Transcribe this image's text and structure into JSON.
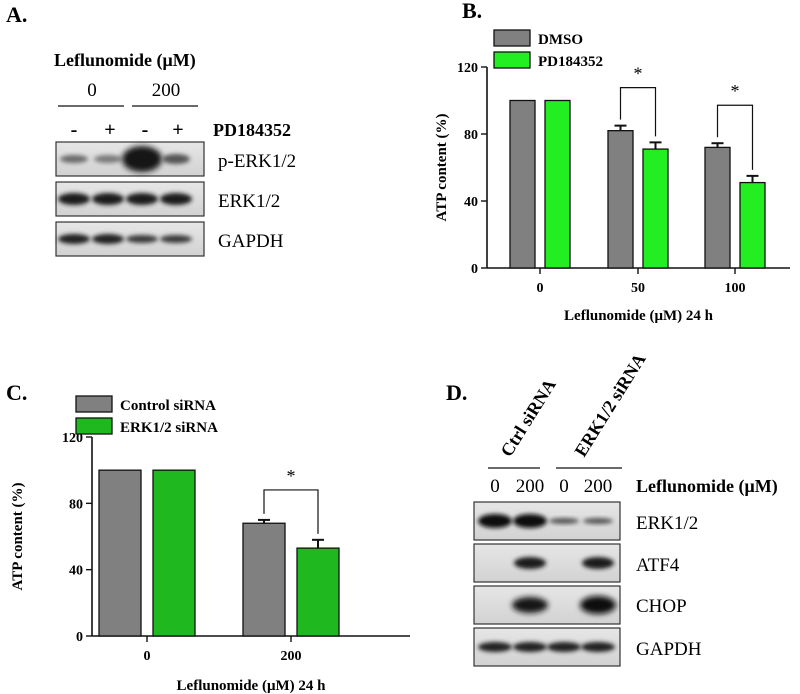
{
  "panels": {
    "a": {
      "letter": "A.",
      "treatment_label": "Leflunomide (μM)",
      "doses": [
        "0",
        "200"
      ],
      "pd_signs": [
        "-",
        "+",
        "-",
        "+"
      ],
      "pd_label": "PD184352",
      "blots": [
        "p-ERK1/2",
        "ERK1/2",
        "GAPDH"
      ]
    },
    "b": {
      "letter": "B."
    },
    "c": {
      "letter": "C."
    },
    "d": {
      "letter": "D.",
      "groups": [
        "Ctrl siRNA",
        "ERK1/2 siRNA"
      ],
      "doses": [
        "0",
        "200",
        "0",
        "200"
      ],
      "treatment_label": "Leflunomide (μM)",
      "blots": [
        "ERK1/2",
        "ATF4",
        "CHOP",
        "GAPDH"
      ]
    }
  },
  "chart_data": [
    {
      "id": "B",
      "type": "bar",
      "categories": [
        "0",
        "50",
        "100"
      ],
      "series": [
        {
          "name": "DMSO",
          "color": "#808080",
          "values": [
            100,
            82,
            72
          ],
          "errors": [
            0,
            3,
            2.5
          ]
        },
        {
          "name": "PD184352",
          "color": "#22ee22",
          "values": [
            100,
            71,
            51
          ],
          "errors": [
            0,
            4,
            4
          ]
        }
      ],
      "xlabel": "Leflunomide (μM) 24 h",
      "ylabel": "ATP content (%)",
      "ylim": [
        0,
        120
      ],
      "yticks": [
        "0",
        "40",
        "80",
        "120"
      ],
      "significance": [
        "*",
        "*"
      ],
      "legend": "top-left"
    },
    {
      "id": "C",
      "type": "bar",
      "categories": [
        "0",
        "200"
      ],
      "series": [
        {
          "name": "Control siRNA",
          "color": "#808080",
          "values": [
            100,
            68
          ],
          "errors": [
            0,
            2
          ]
        },
        {
          "name": "ERK1/2 siRNA",
          "color": "#1fb81f",
          "values": [
            100,
            53
          ],
          "errors": [
            0,
            5
          ]
        }
      ],
      "xlabel": "Leflunomide (μM) 24 h",
      "ylabel": "ATP content (%)",
      "ylim": [
        0,
        120
      ],
      "yticks": [
        "0",
        "40",
        "80",
        "120"
      ],
      "significance": [
        "*"
      ],
      "legend": "top-left"
    }
  ]
}
